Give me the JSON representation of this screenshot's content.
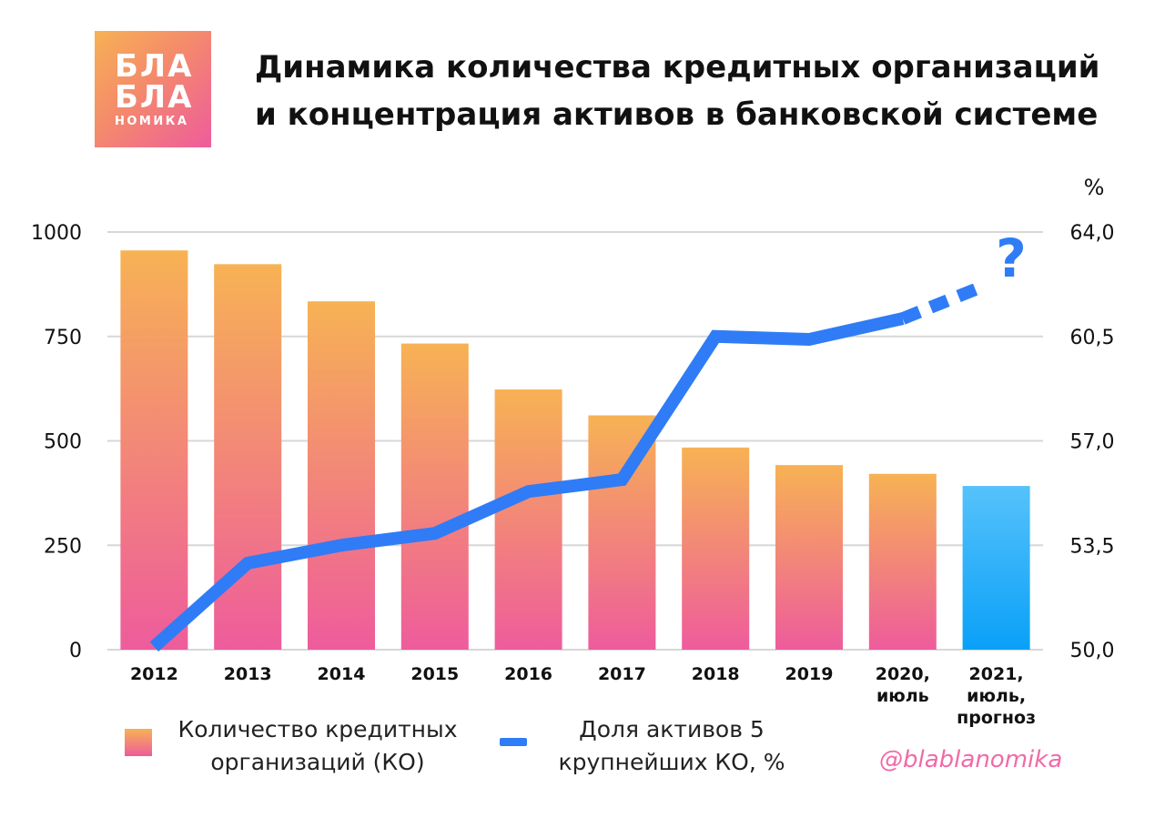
{
  "logo": {
    "line1": "БЛА",
    "line2": "БЛА",
    "line3": "НОМИКА"
  },
  "title": {
    "line1": "Динамика количества кредитных организаций",
    "line2": "и концентрация активов в банковской системе"
  },
  "chart_data": {
    "type": "bar",
    "categories": [
      "2012",
      "2013",
      "2014",
      "2015",
      "2016",
      "2017",
      "2018",
      "2019",
      "2020,\nиюль",
      "2021,\nиюль,\nпрогноз"
    ],
    "series": [
      {
        "name": "Количество кредитных организаций (КО)",
        "type": "bar",
        "axis": "left",
        "values": [
          956,
          923,
          834,
          733,
          623,
          561,
          484,
          442,
          421,
          392
        ]
      },
      {
        "name": "Доля активов 5 крупнейших КО, %",
        "type": "line",
        "axis": "right",
        "values": [
          50.1,
          52.9,
          53.5,
          53.9,
          55.3,
          55.7,
          60.5,
          60.4,
          61.1,
          62.4
        ],
        "forecast_from_index": 8
      }
    ],
    "forecast_index": 8,
    "yleft": {
      "min": 0,
      "max": 1000,
      "ticks": [
        "0",
        "250",
        "500",
        "750",
        "1000"
      ]
    },
    "yright": {
      "min": 50,
      "max": 64,
      "unit": "%",
      "ticks": [
        "50,0",
        "53,5",
        "57,0",
        "60,5",
        "64,0"
      ]
    },
    "annotation": "?",
    "grid": true,
    "legend_position": "bottom"
  },
  "colors": {
    "bar_top": "#f7b254",
    "bar_bottom": "#ee5c9c",
    "forecast_top": "#56c2fb",
    "forecast_bottom": "#0aa0f8",
    "line": "#2f7cf6",
    "grid": "#d7d7d7"
  },
  "legend": {
    "bars_label": "Количество кредитных организаций (КО)",
    "line_label": "Доля активов 5 крупнейших КО, %"
  },
  "handle": "@blablanomika"
}
